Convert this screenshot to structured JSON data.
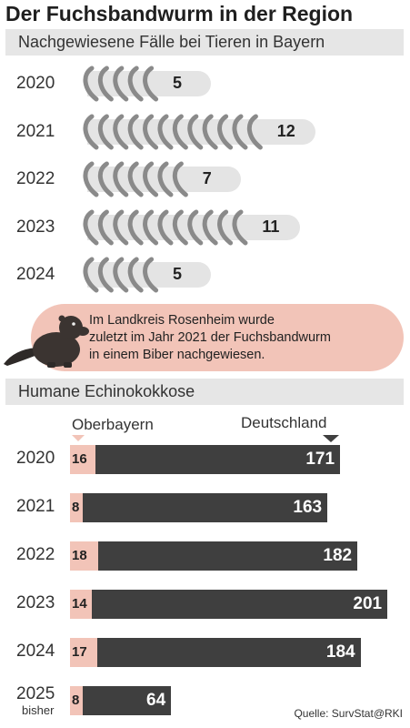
{
  "title": "Der Fuchsbandwurm in der Region",
  "section1": {
    "heading": "Nachgewiesene Fälle bei Tieren in Bayern"
  },
  "note": {
    "line1": "Im Landkreis Rosenheim wurde",
    "line2": "zuletzt im Jahr 2021 der Fuchsbandwurm",
    "line3": "in einem Biber nachgewiesen.",
    "icon": "beaver-icon"
  },
  "section2": {
    "heading": "Humane Echinokokkose",
    "legend_ob": "Oberbayern",
    "legend_de": "Deutschland"
  },
  "source": "Quelle: SurvStat@RKI",
  "colors": {
    "band": "#e6e6e6",
    "pill": "#e4e4e4",
    "accent": "#f2c4b8",
    "dark": "#3f3f3f",
    "worm": "#8a8a8a"
  },
  "chart_data": [
    {
      "type": "bar",
      "title": "Nachgewiesene Fälle bei Tieren in Bayern",
      "categories": [
        "2020",
        "2021",
        "2022",
        "2023",
        "2024"
      ],
      "values": [
        5,
        12,
        7,
        11,
        5
      ],
      "value_labels": [
        "5",
        "12",
        "7",
        "11",
        "5"
      ],
      "marker": "worm-icon"
    },
    {
      "type": "bar",
      "title": "Humane Echinokokkose",
      "categories": [
        "2020",
        "2021",
        "2022",
        "2023",
        "2024",
        "2025"
      ],
      "category_sublabels": [
        "",
        "",
        "",
        "",
        "",
        "bisher"
      ],
      "series": [
        {
          "name": "Oberbayern",
          "values": [
            16,
            8,
            18,
            14,
            17,
            8
          ],
          "labels": [
            "16",
            "8",
            "18",
            "14",
            "17",
            "8"
          ]
        },
        {
          "name": "Deutschland",
          "values": [
            171,
            163,
            182,
            201,
            184,
            64
          ],
          "labels": [
            "171",
            "163",
            "182",
            "201",
            "184",
            "64"
          ]
        }
      ],
      "xlim": [
        0,
        201
      ]
    }
  ]
}
